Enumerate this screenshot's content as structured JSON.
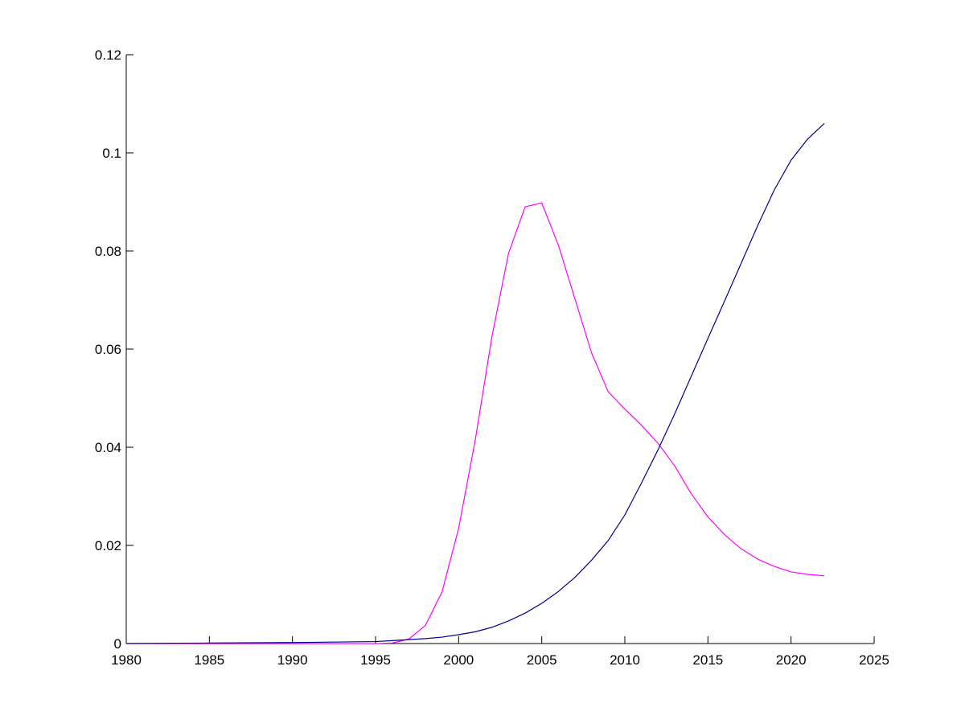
{
  "chart_data": {
    "type": "line",
    "title": "",
    "xlabel": "",
    "ylabel": "",
    "xlim": [
      1980,
      2025
    ],
    "ylim": [
      0,
      0.12
    ],
    "grid": false,
    "legend": "none",
    "x_ticks": [
      1980,
      1985,
      1990,
      1995,
      2000,
      2005,
      2010,
      2015,
      2020,
      2025
    ],
    "x_tick_labels": [
      "1980",
      "1985",
      "1990",
      "1995",
      "2000",
      "2005",
      "2010",
      "2015",
      "2020",
      "2025"
    ],
    "y_ticks": [
      0,
      0.02,
      0.04,
      0.06,
      0.08,
      0.1,
      0.12
    ],
    "y_tick_labels": [
      "0",
      "0.02",
      "0.04",
      "0.06",
      "0.08",
      "0.1",
      "0.12"
    ],
    "series": [
      {
        "color": "#ff00ff",
        "x": [
          1980,
          1985,
          1990,
          1995,
          1996,
          1997,
          1998,
          1999,
          2000,
          2001,
          2002,
          2003,
          2004,
          2005,
          2006,
          2007,
          2008,
          2009,
          2010,
          2011,
          2012,
          2013,
          2014,
          2015,
          2016,
          2017,
          2018,
          2019,
          2020,
          2021,
          2022
        ],
        "values": [
          0,
          0,
          0,
          0,
          0.0001,
          0.0009,
          0.0037,
          0.0105,
          0.0235,
          0.0415,
          0.0625,
          0.0795,
          0.089,
          0.0898,
          0.0812,
          0.0702,
          0.0592,
          0.0513,
          0.0478,
          0.0445,
          0.0408,
          0.0362,
          0.0305,
          0.0258,
          0.0222,
          0.0193,
          0.0172,
          0.0157,
          0.0146,
          0.0141,
          0.0138
        ]
      },
      {
        "color": "#00008b",
        "x": [
          1980,
          1985,
          1990,
          1995,
          1996,
          1997,
          1998,
          1999,
          2000,
          2001,
          2002,
          2003,
          2004,
          2005,
          2006,
          2007,
          2008,
          2009,
          2010,
          2011,
          2012,
          2013,
          2014,
          2015,
          2016,
          2017,
          2018,
          2019,
          2020,
          2021,
          2022
        ],
        "values": [
          0,
          0.0001,
          0.0002,
          0.0004,
          0.0006,
          0.0008,
          0.001,
          0.0013,
          0.0018,
          0.0024,
          0.0033,
          0.0046,
          0.0062,
          0.0082,
          0.0106,
          0.0135,
          0.017,
          0.021,
          0.0262,
          0.0327,
          0.0395,
          0.0468,
          0.0545,
          0.0622,
          0.0698,
          0.0775,
          0.0852,
          0.0925,
          0.0985,
          0.1028,
          0.106
        ]
      }
    ]
  }
}
